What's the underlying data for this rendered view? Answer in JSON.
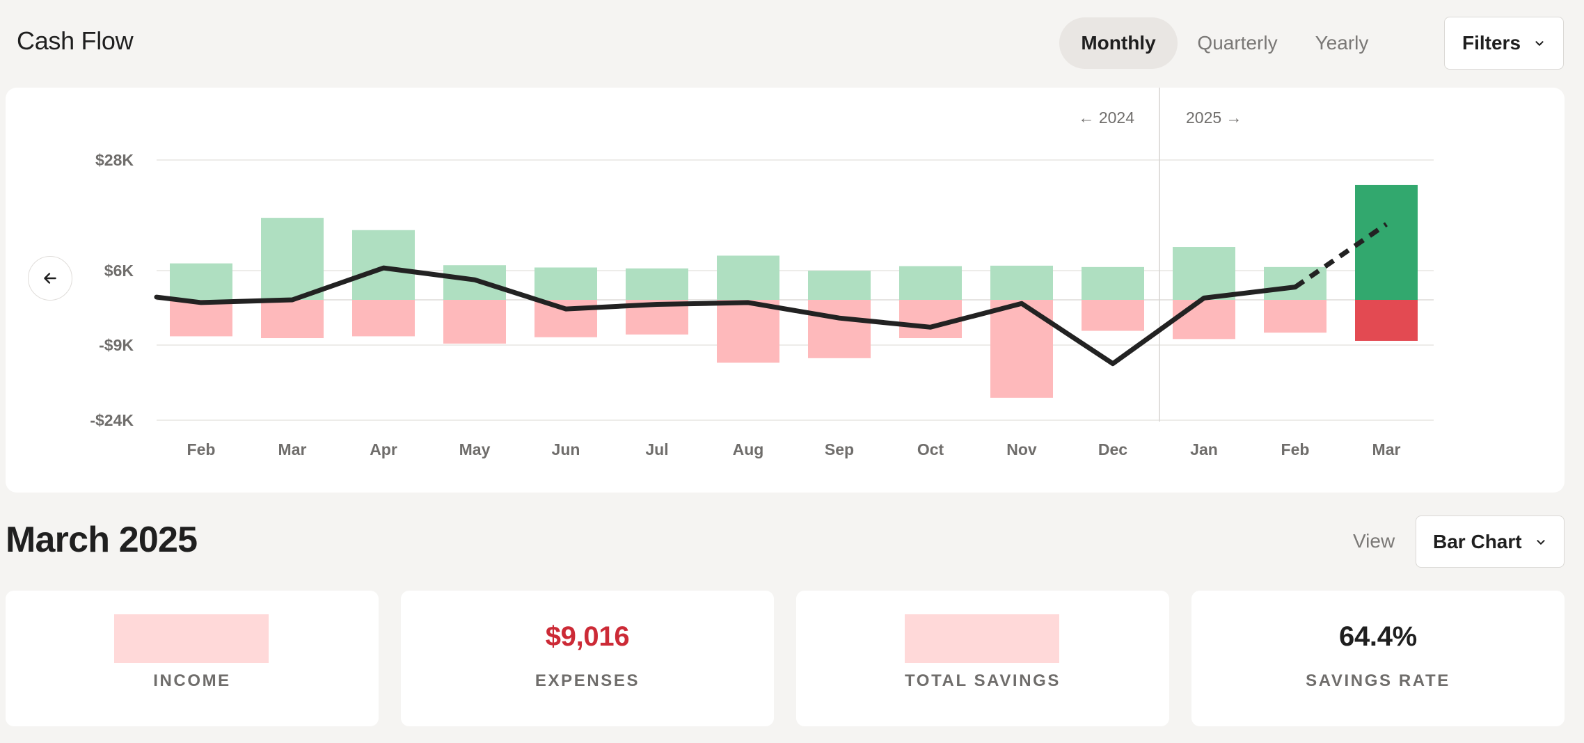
{
  "header": {
    "title": "Cash Flow",
    "period_tabs": [
      {
        "label": "Monthly",
        "active": true
      },
      {
        "label": "Quarterly",
        "active": false
      },
      {
        "label": "Yearly",
        "active": false
      }
    ],
    "filters_label": "Filters",
    "filters_icon": "chevron-down-icon"
  },
  "chart": {
    "back_icon": "arrow-left-icon",
    "year_left": "← 2024",
    "year_right": "2025 →"
  },
  "chart_data": {
    "type": "bar",
    "categories": [
      "Feb",
      "Mar",
      "Apr",
      "May",
      "Jun",
      "Jul",
      "Aug",
      "Sep",
      "Oct",
      "Nov",
      "Dec",
      "Jan",
      "Feb",
      "Mar"
    ],
    "y_ticks": [
      "$28K",
      "$6K",
      "-$9K",
      "-$24K"
    ],
    "series": [
      {
        "values": [
          8,
          18,
          15.3,
          7.6,
          7.1,
          6.9,
          9.7,
          6.4,
          7.4,
          7.5,
          7.2,
          11.6,
          7.2,
          25.2
        ]
      },
      {
        "values": [
          -8,
          -8.4,
          -8,
          -9.6,
          -8.2,
          -7.6,
          -13.8,
          -12.8,
          -8.4,
          -21.5,
          -6.8,
          -8.6,
          -7.2,
          -9
        ]
      },
      {
        "values": [
          -0.6,
          0,
          7,
          4.4,
          -2,
          -1,
          -0.6,
          -4,
          -6,
          -0.8,
          -14,
          0.4,
          2.8,
          0
        ]
      }
    ],
    "projection": {
      "from_index": 12,
      "to_index": 13,
      "values": [
        0,
        16.6
      ]
    },
    "colors": {
      "income": "#afdfc1",
      "expense": "#feb9bb",
      "current_income": "#32a86e",
      "current_expense": "#e34a52",
      "line": "#222222"
    },
    "year_divider_after_index": 10,
    "grid": true
  },
  "summary": {
    "title": "March 2025",
    "view_label": "View",
    "view_select": "Bar Chart",
    "stats": [
      {
        "label": "INCOME",
        "value": null,
        "redacted": true
      },
      {
        "label": "EXPENSES",
        "value": "$9,016",
        "color": "#cc2a36"
      },
      {
        "label": "TOTAL SAVINGS",
        "value": null,
        "redacted": true
      },
      {
        "label": "SAVINGS RATE",
        "value": "64.4%"
      }
    ]
  }
}
